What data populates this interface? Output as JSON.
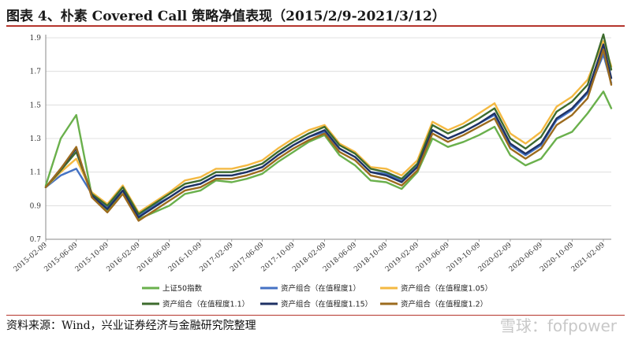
{
  "title": "图表 4、朴素 Covered Call 策略净值表现（2015/2/9-2021/3/12）",
  "source": "资料来源：Wind，兴业证券经济与金融研究院整理",
  "watermark": "雪球：fofpower",
  "chart_data": {
    "type": "line",
    "title": "图表 4、朴素 Covered Call 策略净值表现（2015/2/9-2021/3/12）",
    "xlabel": "",
    "ylabel": "",
    "ylim": [
      0.7,
      1.9
    ],
    "y_ticks": [
      "0.7",
      "0.9",
      "1.1",
      "1.3",
      "1.5",
      "1.7",
      "1.9"
    ],
    "x_ticks": [
      "2015-02-09",
      "2015-06-09",
      "2015-10-09",
      "2016-02-09",
      "2016-06-09",
      "2016-10-09",
      "2017-02-09",
      "2017-06-09",
      "2017-10-09",
      "2018-02-09",
      "2018-06-09",
      "2018-10-09",
      "2019-02-09",
      "2019-06-09",
      "2019-10-09",
      "2020-02-09",
      "2020-06-09",
      "2020-10-09",
      "2021-02-09"
    ],
    "grid": true,
    "legend_position": "bottom",
    "x": [
      "2015-02-09",
      "2015-04-09",
      "2015-06-09",
      "2015-08-09",
      "2015-10-09",
      "2015-12-09",
      "2016-02-09",
      "2016-04-09",
      "2016-06-09",
      "2016-08-09",
      "2016-10-09",
      "2016-12-09",
      "2017-02-09",
      "2017-04-09",
      "2017-06-09",
      "2017-08-09",
      "2017-10-09",
      "2017-12-09",
      "2018-02-09",
      "2018-04-09",
      "2018-06-09",
      "2018-08-09",
      "2018-10-09",
      "2018-12-09",
      "2019-02-09",
      "2019-04-09",
      "2019-06-09",
      "2019-08-09",
      "2019-10-09",
      "2019-12-09",
      "2020-02-09",
      "2020-04-09",
      "2020-06-09",
      "2020-08-09",
      "2020-10-09",
      "2020-12-09",
      "2021-02-09",
      "2021-03-12"
    ],
    "series": [
      {
        "name": "上证50指数",
        "color": "#6ab04c",
        "values": [
          1.02,
          1.3,
          1.44,
          0.96,
          0.87,
          0.99,
          0.82,
          0.86,
          0.9,
          0.97,
          0.99,
          1.05,
          1.04,
          1.06,
          1.09,
          1.16,
          1.22,
          1.28,
          1.32,
          1.2,
          1.14,
          1.05,
          1.04,
          1.0,
          1.1,
          1.3,
          1.25,
          1.28,
          1.32,
          1.37,
          1.2,
          1.14,
          1.18,
          1.3,
          1.34,
          1.45,
          1.58,
          1.48
        ]
      },
      {
        "name": "资产组合（在值程度1）",
        "color": "#4472c4",
        "values": [
          1.01,
          1.08,
          1.12,
          0.97,
          0.89,
          0.99,
          0.84,
          0.9,
          0.95,
          1.01,
          1.03,
          1.08,
          1.08,
          1.1,
          1.13,
          1.2,
          1.26,
          1.31,
          1.34,
          1.24,
          1.19,
          1.1,
          1.09,
          1.05,
          1.14,
          1.35,
          1.3,
          1.34,
          1.39,
          1.44,
          1.26,
          1.2,
          1.26,
          1.41,
          1.47,
          1.57,
          1.8,
          1.63
        ]
      },
      {
        "name": "资产组合（在值程度1.05）",
        "color": "#f4b942",
        "values": [
          1.01,
          1.1,
          1.18,
          0.98,
          0.91,
          1.02,
          0.86,
          0.92,
          0.98,
          1.05,
          1.07,
          1.12,
          1.12,
          1.14,
          1.17,
          1.24,
          1.3,
          1.35,
          1.38,
          1.27,
          1.22,
          1.13,
          1.12,
          1.08,
          1.17,
          1.4,
          1.35,
          1.39,
          1.45,
          1.51,
          1.33,
          1.27,
          1.34,
          1.49,
          1.55,
          1.65,
          1.88,
          1.73
        ]
      },
      {
        "name": "资产组合（在值程度1.1）",
        "color": "#3d6b2e",
        "values": [
          1.01,
          1.11,
          1.22,
          0.97,
          0.9,
          1.01,
          0.85,
          0.91,
          0.97,
          1.03,
          1.05,
          1.1,
          1.1,
          1.12,
          1.15,
          1.22,
          1.28,
          1.33,
          1.37,
          1.26,
          1.21,
          1.12,
          1.1,
          1.06,
          1.15,
          1.38,
          1.33,
          1.37,
          1.42,
          1.48,
          1.3,
          1.24,
          1.31,
          1.46,
          1.52,
          1.62,
          1.92,
          1.71
        ]
      },
      {
        "name": "资产组合（在值程度1.15）",
        "color": "#1f3264",
        "values": [
          1.01,
          1.12,
          1.24,
          0.96,
          0.88,
          0.99,
          0.83,
          0.89,
          0.95,
          1.01,
          1.03,
          1.08,
          1.08,
          1.1,
          1.13,
          1.2,
          1.26,
          1.31,
          1.35,
          1.24,
          1.19,
          1.1,
          1.08,
          1.04,
          1.13,
          1.35,
          1.3,
          1.34,
          1.39,
          1.45,
          1.27,
          1.21,
          1.27,
          1.42,
          1.48,
          1.58,
          1.86,
          1.66
        ]
      },
      {
        "name": "资产组合（在值程度1.2）",
        "color": "#9c6b1e",
        "values": [
          1.01,
          1.12,
          1.25,
          0.95,
          0.86,
          0.97,
          0.81,
          0.87,
          0.93,
          0.99,
          1.01,
          1.06,
          1.06,
          1.08,
          1.11,
          1.18,
          1.24,
          1.29,
          1.33,
          1.22,
          1.17,
          1.08,
          1.06,
          1.02,
          1.11,
          1.33,
          1.28,
          1.32,
          1.37,
          1.42,
          1.24,
          1.18,
          1.24,
          1.38,
          1.44,
          1.54,
          1.83,
          1.62
        ]
      }
    ]
  }
}
